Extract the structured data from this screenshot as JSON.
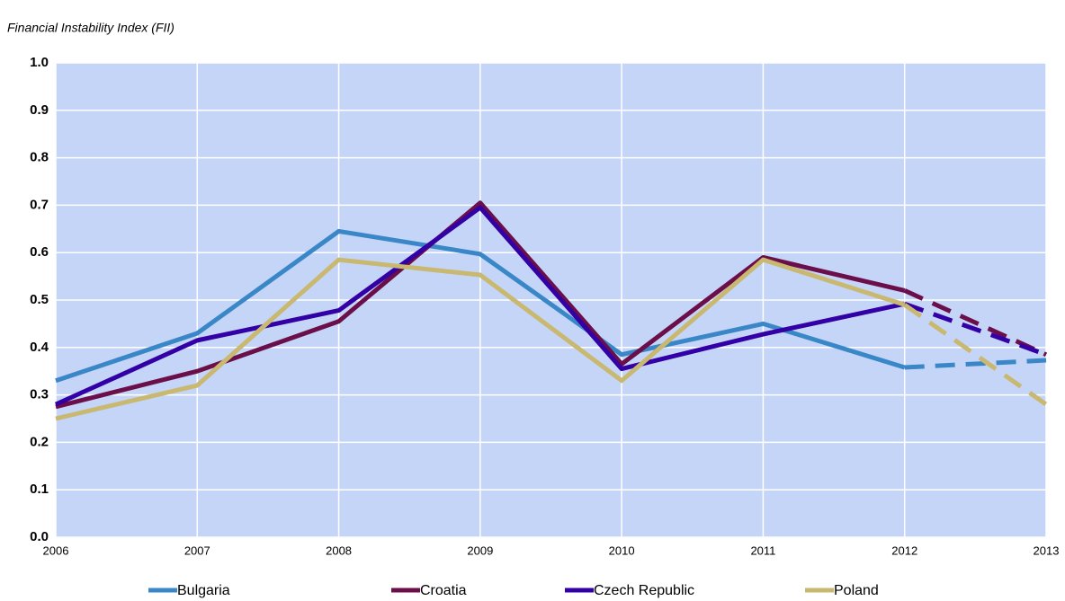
{
  "chart_data": {
    "type": "line",
    "title": "Financial Instability Index (FII)",
    "x": [
      2006,
      2007,
      2008,
      2009,
      2010,
      2011,
      2012,
      2013
    ],
    "xlim": [
      2006,
      2013
    ],
    "xticks": [
      2006,
      2007,
      2008,
      2009,
      2010,
      2011,
      2012,
      2013
    ],
    "ylim": [
      0,
      1
    ],
    "yticks": [
      {
        "value": 0,
        "label": "0.0"
      },
      0.1,
      0.2,
      0.3,
      0.4,
      0.5,
      0.6,
      0.7,
      0.8,
      0.9,
      {
        "value": 1,
        "label": "1.0"
      }
    ],
    "grid": true,
    "dashed_from_x": 2012,
    "legend": "bottom",
    "series": [
      {
        "name": "Bulgaria",
        "color": "#3a87c8",
        "values": [
          0.33,
          0.43,
          0.645,
          0.597,
          0.385,
          0.45,
          0.358,
          0.373
        ]
      },
      {
        "name": "Croatia",
        "color": "#6b0f4a",
        "values": [
          0.275,
          0.35,
          0.455,
          0.705,
          0.365,
          0.59,
          0.52,
          0.385
        ]
      },
      {
        "name": "Czech Republic",
        "color": "#3300a6",
        "values": [
          0.28,
          0.415,
          0.478,
          0.695,
          0.355,
          0.428,
          0.492,
          0.385
        ]
      },
      {
        "name": "Poland",
        "color": "#c8b870",
        "values": [
          0.25,
          0.32,
          0.585,
          0.553,
          0.33,
          0.585,
          0.49,
          0.28
        ]
      }
    ]
  }
}
